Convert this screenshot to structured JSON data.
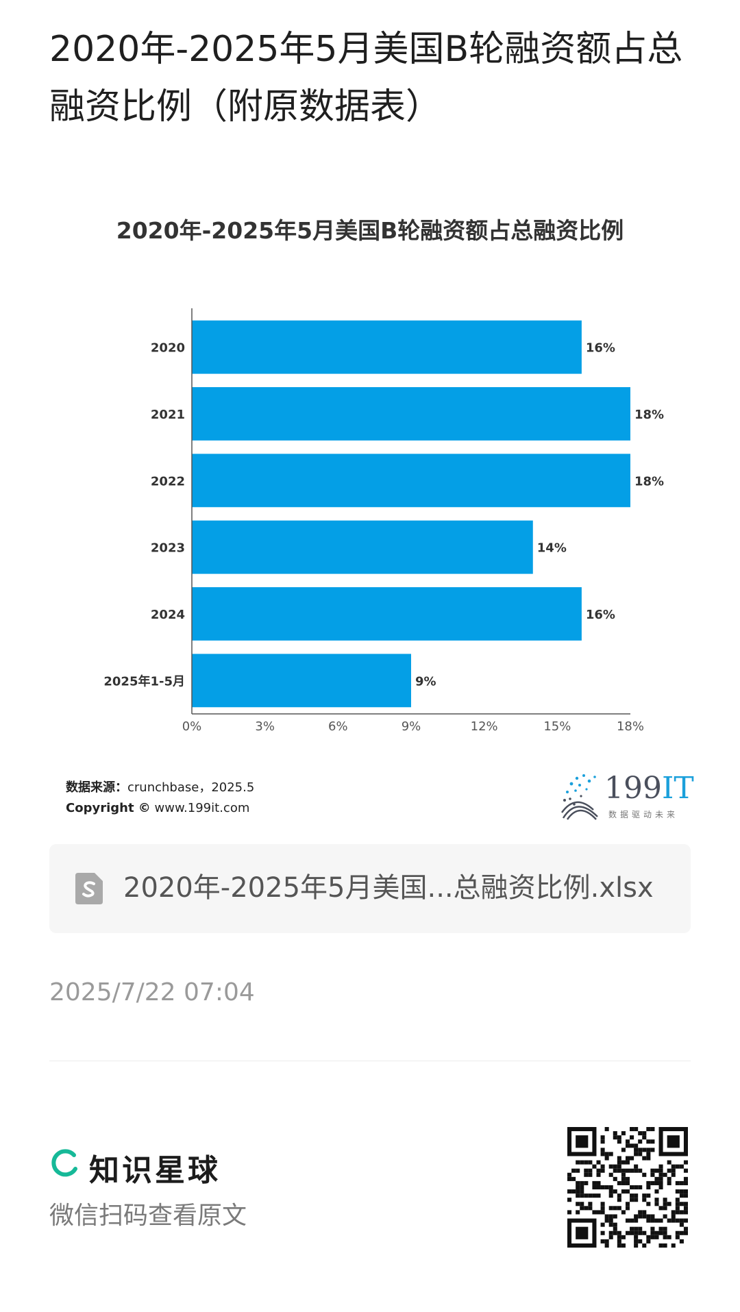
{
  "page": {
    "title": "2020年-2025年5月美国B轮融资额占总融资比例（附原数据表）"
  },
  "chart_data": {
    "type": "bar",
    "orientation": "horizontal",
    "title": "2020年-2025年5月美国B轮融资额占总融资比例",
    "categories": [
      "2020",
      "2021",
      "2022",
      "2023",
      "2024",
      "2025年1-5月"
    ],
    "values": [
      16,
      18,
      18,
      14,
      16,
      9
    ],
    "value_labels": [
      "16%",
      "18%",
      "18%",
      "14%",
      "16%",
      "9%"
    ],
    "xlim": [
      0,
      18
    ],
    "x_ticks": [
      "0%",
      "3%",
      "6%",
      "9%",
      "12%",
      "15%",
      "18%"
    ],
    "bar_color": "#049fe6",
    "grid": false,
    "legend": "none"
  },
  "source": {
    "label": "数据来源：",
    "value": "crunchbase，2025.5",
    "copyright_label": "Copyright ©",
    "copyright_value": "www.199it.com"
  },
  "brand": {
    "number": "199",
    "suffix": "IT",
    "tagline": "数据驱动未来"
  },
  "file": {
    "icon": "spreadsheet-file-icon",
    "name": "2020年-2025年5月美国...总融资比例.xlsx"
  },
  "timestamp": "2025/7/22 07:04",
  "footer": {
    "app_name": "知识星球",
    "scan_hint": "微信扫码查看原文",
    "accent_color": "#16b998"
  }
}
